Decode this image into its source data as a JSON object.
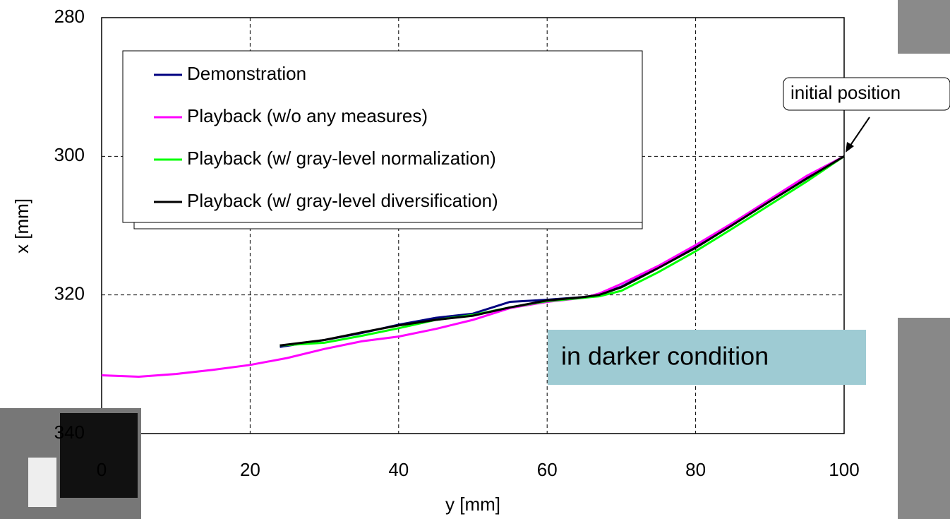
{
  "chart_data": {
    "type": "line",
    "xlabel": "y [mm]",
    "ylabel": "x [mm]",
    "xlim": [
      0,
      100
    ],
    "xticks": [
      0,
      20,
      40,
      60,
      80,
      100
    ],
    "ylim": [
      340,
      280
    ],
    "yticks": [
      280,
      300,
      320,
      340
    ],
    "y_inverted": true,
    "grid": true,
    "series": [
      {
        "name": "Demonstration",
        "color": "#000080",
        "x": [
          24,
          30,
          35,
          40,
          45,
          50,
          55,
          60,
          65,
          67,
          70,
          75,
          80,
          85,
          90,
          95,
          100
        ],
        "values": [
          327.5,
          326.5,
          325.5,
          324.3,
          323.3,
          322.7,
          321.0,
          320.7,
          320.3,
          320.0,
          318.8,
          316.0,
          313.0,
          309.8,
          306.3,
          303.0,
          300.0
        ]
      },
      {
        "name": "Playback (w/o any measures)",
        "color": "#ff00ff",
        "x": [
          0,
          5,
          10,
          15,
          20,
          25,
          30,
          35,
          40,
          45,
          50,
          55,
          60,
          65,
          67,
          70,
          75,
          80,
          85,
          90,
          95,
          100
        ],
        "values": [
          331.6,
          331.8,
          331.4,
          330.8,
          330.1,
          329.1,
          327.8,
          326.7,
          326.0,
          324.9,
          323.6,
          321.9,
          321.0,
          320.4,
          319.8,
          318.4,
          315.8,
          312.8,
          309.6,
          306.2,
          302.8,
          300.0
        ]
      },
      {
        "name": "Playback (w/ gray-level normalization)",
        "color": "#00ff00",
        "x": [
          24,
          30,
          35,
          40,
          45,
          50,
          55,
          60,
          65,
          67,
          70,
          75,
          80,
          85,
          90,
          95,
          100
        ],
        "values": [
          327.3,
          326.9,
          325.9,
          324.8,
          323.6,
          322.9,
          321.8,
          320.9,
          320.4,
          320.2,
          319.4,
          316.7,
          313.7,
          310.4,
          307.0,
          303.6,
          300.0
        ]
      },
      {
        "name": "Playback (w/ gray-level diversification)",
        "color": "#000000",
        "x": [
          24,
          30,
          35,
          40,
          45,
          50,
          55,
          60,
          65,
          67,
          70,
          75,
          80,
          85,
          90,
          95,
          100
        ],
        "values": [
          327.3,
          326.5,
          325.4,
          324.4,
          323.6,
          323.0,
          321.8,
          320.8,
          320.3,
          320.0,
          318.9,
          316.1,
          313.2,
          309.9,
          306.5,
          303.2,
          300.0
        ]
      }
    ],
    "annotations": [
      "initial position",
      "in darker condition"
    ]
  }
}
